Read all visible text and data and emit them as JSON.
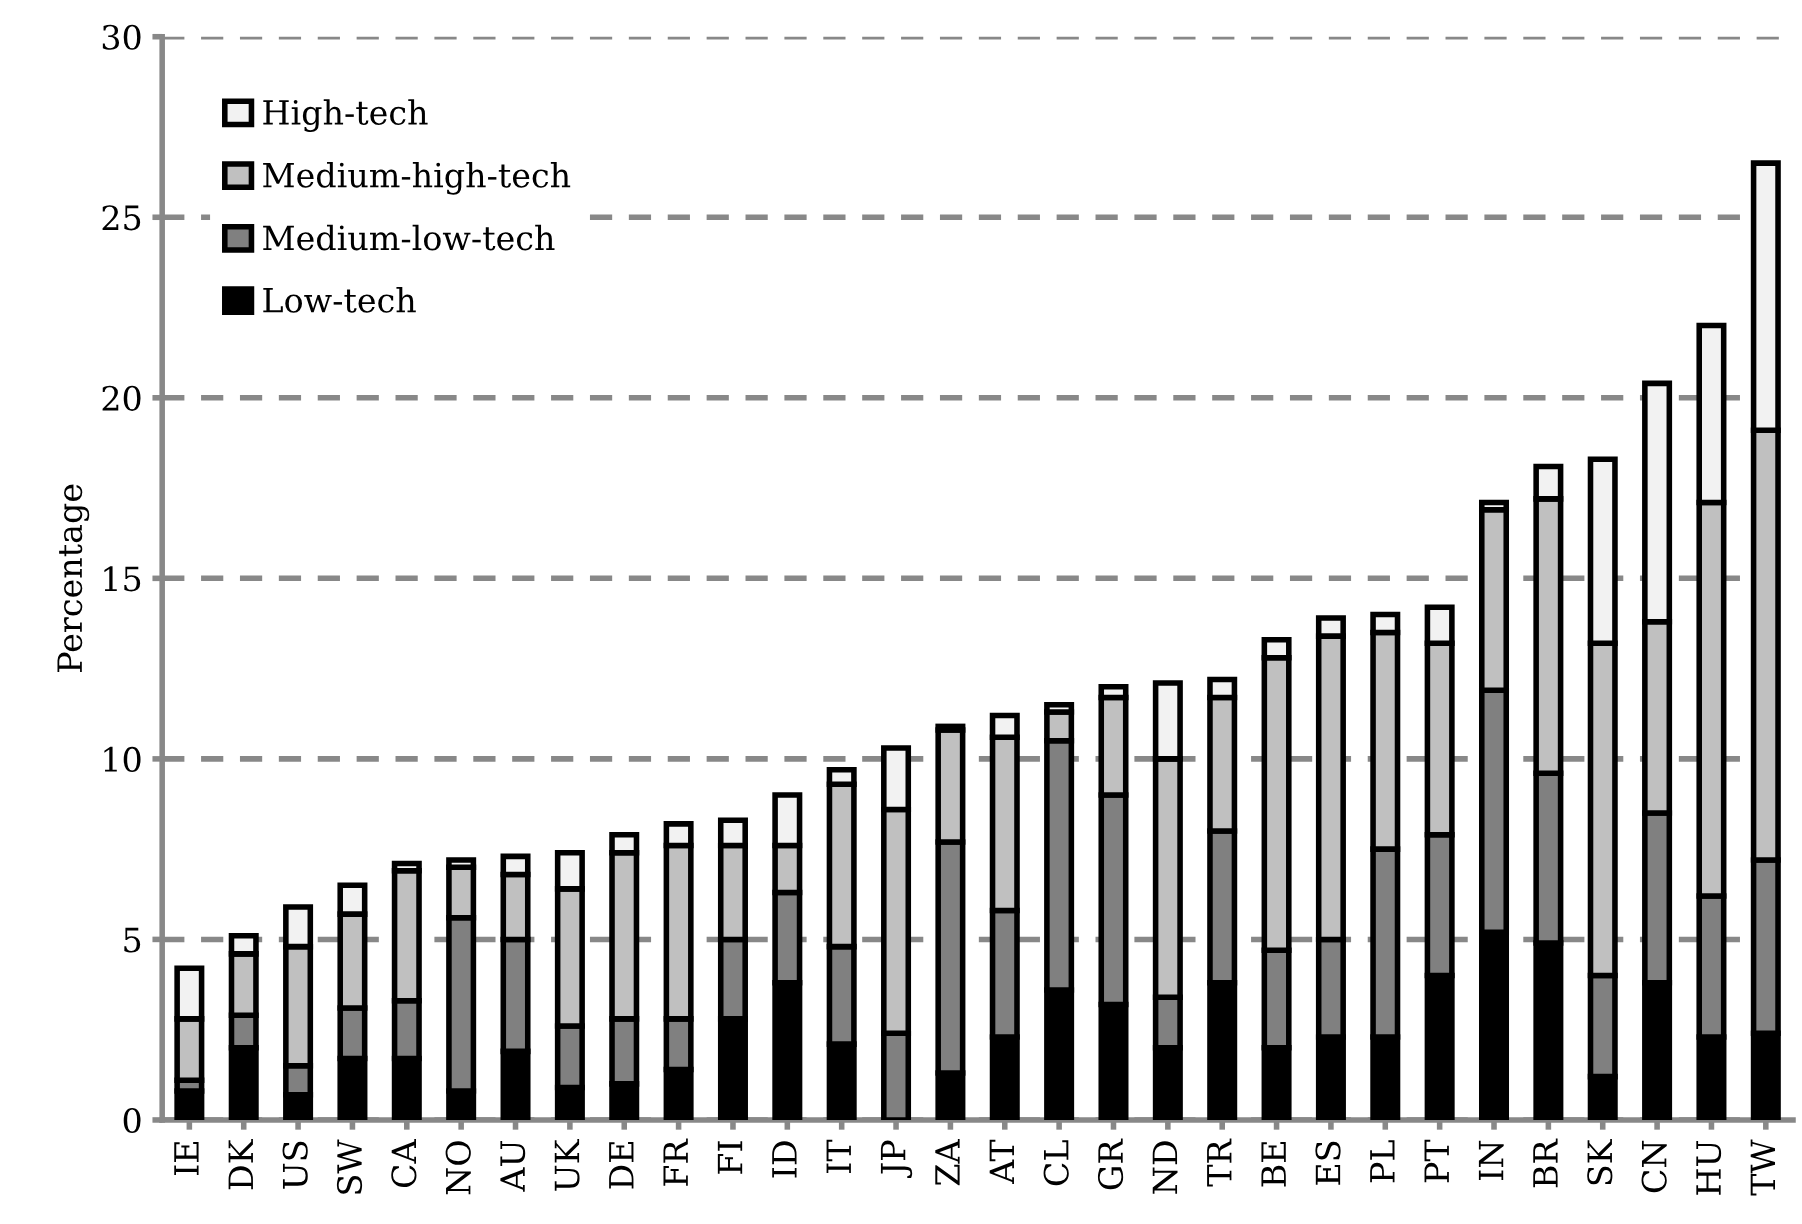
{
  "chart_data": {
    "type": "bar",
    "stacked": true,
    "ylabel": "Percentage",
    "categories": [
      "IE",
      "DK",
      "US",
      "SW",
      "CA",
      "NO",
      "AU",
      "UK",
      "DE",
      "FR",
      "FI",
      "ID",
      "IT",
      "JP",
      "ZA",
      "AT",
      "CL",
      "GR",
      "ND",
      "TR",
      "BE",
      "ES",
      "PL",
      "PT",
      "IN",
      "BR",
      "SK",
      "CN",
      "HU",
      "TW"
    ],
    "series": [
      {
        "name": "Low-tech",
        "color": "#000000",
        "values": [
          0.8,
          2.0,
          0.7,
          1.7,
          1.7,
          0.8,
          1.9,
          0.9,
          1.0,
          1.4,
          2.8,
          3.8,
          2.1,
          null,
          1.3,
          2.3,
          3.6,
          3.2,
          2.0,
          3.8,
          2.0,
          2.3,
          2.3,
          4.0,
          5.2,
          4.9,
          1.2,
          3.8,
          2.3,
          2.4
        ]
      },
      {
        "name": "Medium-low-tech",
        "color": "#808080",
        "values": [
          0.3,
          0.9,
          0.8,
          1.4,
          1.6,
          4.8,
          3.1,
          1.7,
          1.8,
          1.4,
          2.2,
          2.5,
          2.7,
          2.4,
          6.4,
          3.5,
          6.9,
          5.8,
          1.4,
          4.2,
          2.7,
          2.7,
          5.2,
          3.9,
          6.7,
          4.7,
          2.8,
          4.7,
          3.9,
          4.8
        ]
      },
      {
        "name": "Medium-high-tech",
        "color": "#c0c0c0",
        "values": [
          1.7,
          1.7,
          3.3,
          2.6,
          3.6,
          1.4,
          1.8,
          3.8,
          4.6,
          4.8,
          2.6,
          1.3,
          4.5,
          6.2,
          3.1,
          4.8,
          0.8,
          2.7,
          6.6,
          3.7,
          8.1,
          8.4,
          6.0,
          5.3,
          5.0,
          7.6,
          9.2,
          5.3,
          10.9,
          11.9
        ]
      },
      {
        "name": "High-tech",
        "color": "#f2f2f2",
        "values": [
          1.4,
          0.5,
          1.1,
          0.8,
          0.2,
          0.2,
          0.5,
          1.0,
          0.5,
          0.6,
          0.7,
          1.4,
          0.4,
          1.7,
          0.1,
          0.6,
          0.2,
          0.3,
          2.1,
          0.5,
          0.5,
          0.5,
          0.5,
          1.0,
          0.2,
          0.9,
          5.1,
          6.6,
          4.9,
          7.4
        ]
      }
    ],
    "ylim": [
      0,
      30
    ],
    "yticks": [
      0,
      5,
      10,
      15,
      20,
      25,
      30
    ],
    "grid": "y",
    "legend": "top left"
  }
}
